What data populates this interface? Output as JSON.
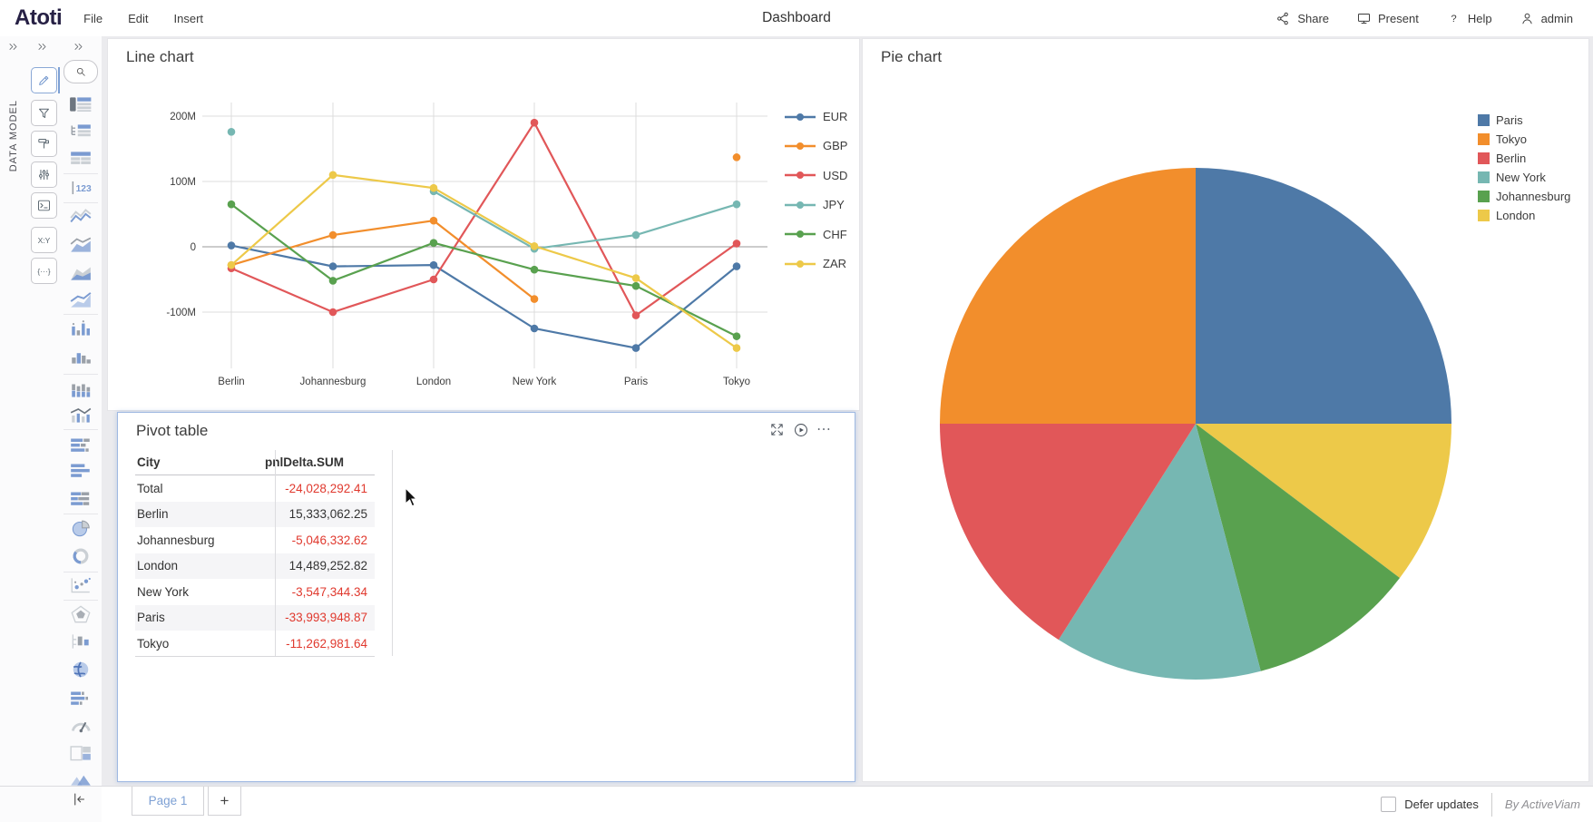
{
  "topbar": {
    "logo": "Atoti",
    "menus": [
      "File",
      "Edit",
      "Insert"
    ],
    "title": "Dashboard",
    "actions": [
      {
        "icon": "share-icon",
        "label": "Share"
      },
      {
        "icon": "present-icon",
        "label": "Present"
      },
      {
        "icon": "help-icon",
        "label": "Help"
      },
      {
        "icon": "user-icon",
        "label": "admin"
      }
    ]
  },
  "sidebar": {
    "data_model_label": "DATA MODEL",
    "tools": [
      "edit-pencil",
      "filter-funnel",
      "format-roller",
      "settings-sliders",
      "console-terminal",
      "xy-axes",
      "expression-braces"
    ],
    "tool_glyphs": {
      "xy-axes": "X:Y",
      "expression-braces": "{···}"
    },
    "widget_icons": [
      "table-view",
      "tree-table-view",
      "plain-table-view",
      "kpi-number-view",
      "line-chart-view",
      "area-line-chart-view",
      "stacked-area-chart-view",
      "filled-line-chart-view",
      "grouped-bar-chart-view",
      "histogram-chart-view",
      "stacked-bar-chart-view",
      "bar-line-combo-view",
      "horizontal-bar-segments-view",
      "horizontal-bar-view",
      "horizontal-stacked-bar-view",
      "pie-chart-view",
      "donut-chart-view",
      "scatter-plot-view",
      "radar-chart-view",
      "box-plot-view",
      "world-map-view",
      "gantt-chart-view",
      "gauge-chart-view",
      "treemap-view",
      "mountain-area-view"
    ]
  },
  "line_chart": {
    "title": "Line chart"
  },
  "pie_chart": {
    "title": "Pie chart",
    "legend": [
      "Paris",
      "Tokyo",
      "Berlin",
      "New York",
      "Johannesburg",
      "London"
    ]
  },
  "pivot": {
    "title": "Pivot table",
    "header_icons": [
      "expand-icon",
      "play-circle-icon",
      "ellipsis-icon"
    ],
    "columns": [
      "City",
      "pnlDelta.SUM"
    ],
    "rows": [
      {
        "city": "Total",
        "value": "-24,028,292.41"
      },
      {
        "city": "Berlin",
        "value": "15,333,062.25"
      },
      {
        "city": "Johannesburg",
        "value": "-5,046,332.62"
      },
      {
        "city": "London",
        "value": "14,489,252.82"
      },
      {
        "city": "New York",
        "value": "-3,547,344.34"
      },
      {
        "city": "Paris",
        "value": "-33,993,948.87"
      },
      {
        "city": "Tokyo",
        "value": "-11,262,981.64"
      }
    ]
  },
  "footer": {
    "page_tab": "Page 1",
    "add_page": "+",
    "defer_updates": "Defer updates",
    "brand": "By ActiveViam"
  },
  "colors": {
    "accent": "#7da0d4",
    "negative": "#e0392e",
    "series": {
      "EUR": "#4e79a7",
      "GBP": "#f28e2c",
      "USD": "#e15759",
      "JPY": "#76b7b2",
      "CHF": "#59a14f",
      "ZAR": "#edc949"
    }
  },
  "chart_data": [
    {
      "type": "line",
      "title": "Line chart",
      "categories": [
        "Berlin",
        "Johannesburg",
        "London",
        "New York",
        "Paris",
        "Tokyo"
      ],
      "unit": "millions",
      "series": [
        {
          "name": "EUR",
          "color": "#4e79a7",
          "values": [
            2,
            -30,
            -28,
            -125,
            -155,
            -30
          ]
        },
        {
          "name": "GBP",
          "color": "#f28e2c",
          "values": [
            -28,
            18,
            40,
            -80,
            null,
            137
          ]
        },
        {
          "name": "USD",
          "color": "#e15759",
          "values": [
            -33,
            -100,
            -50,
            190,
            -105,
            5
          ]
        },
        {
          "name": "JPY",
          "color": "#76b7b2",
          "values": [
            176,
            null,
            85,
            -3,
            18,
            65
          ]
        },
        {
          "name": "CHF",
          "color": "#59a14f",
          "values": [
            65,
            -52,
            6,
            -35,
            -60,
            -137
          ]
        },
        {
          "name": "ZAR",
          "color": "#edc949",
          "values": [
            -28,
            110,
            90,
            1,
            -48,
            -155
          ]
        }
      ],
      "yticks": [
        {
          "label": "200M",
          "value": 200
        },
        {
          "label": "100M",
          "value": 100
        },
        {
          "label": "0",
          "value": 0
        },
        {
          "label": "-100M",
          "value": -100
        }
      ],
      "ylim": [
        -185,
        225
      ],
      "grid": true,
      "legend_position": "right"
    },
    {
      "type": "pie",
      "title": "Pie chart",
      "slices_clockwise_from_top": [
        {
          "label": "Paris",
          "color": "#4e79a7",
          "percent": 25
        },
        {
          "label": "London",
          "color": "#edc949",
          "percent": 10.3
        },
        {
          "label": "Johannesburg",
          "color": "#59a14f",
          "percent": 10.6
        },
        {
          "label": "New York",
          "color": "#76b7b2",
          "percent": 13.1
        },
        {
          "label": "Berlin",
          "color": "#e15759",
          "percent": 16
        },
        {
          "label": "Tokyo",
          "color": "#f28e2c",
          "percent": 25
        }
      ],
      "legend": [
        "Paris",
        "Tokyo",
        "Berlin",
        "New York",
        "Johannesburg",
        "London"
      ],
      "legend_position": "right"
    },
    {
      "type": "table",
      "title": "Pivot table",
      "columns": [
        "City",
        "pnlDelta.SUM"
      ],
      "rows": [
        [
          "Total",
          -24028292.41
        ],
        [
          "Berlin",
          15333062.25
        ],
        [
          "Johannesburg",
          -5046332.62
        ],
        [
          "London",
          14489252.82
        ],
        [
          "New York",
          -3547344.34
        ],
        [
          "Paris",
          -33993948.87
        ],
        [
          "Tokyo",
          -11262981.64
        ]
      ]
    }
  ]
}
